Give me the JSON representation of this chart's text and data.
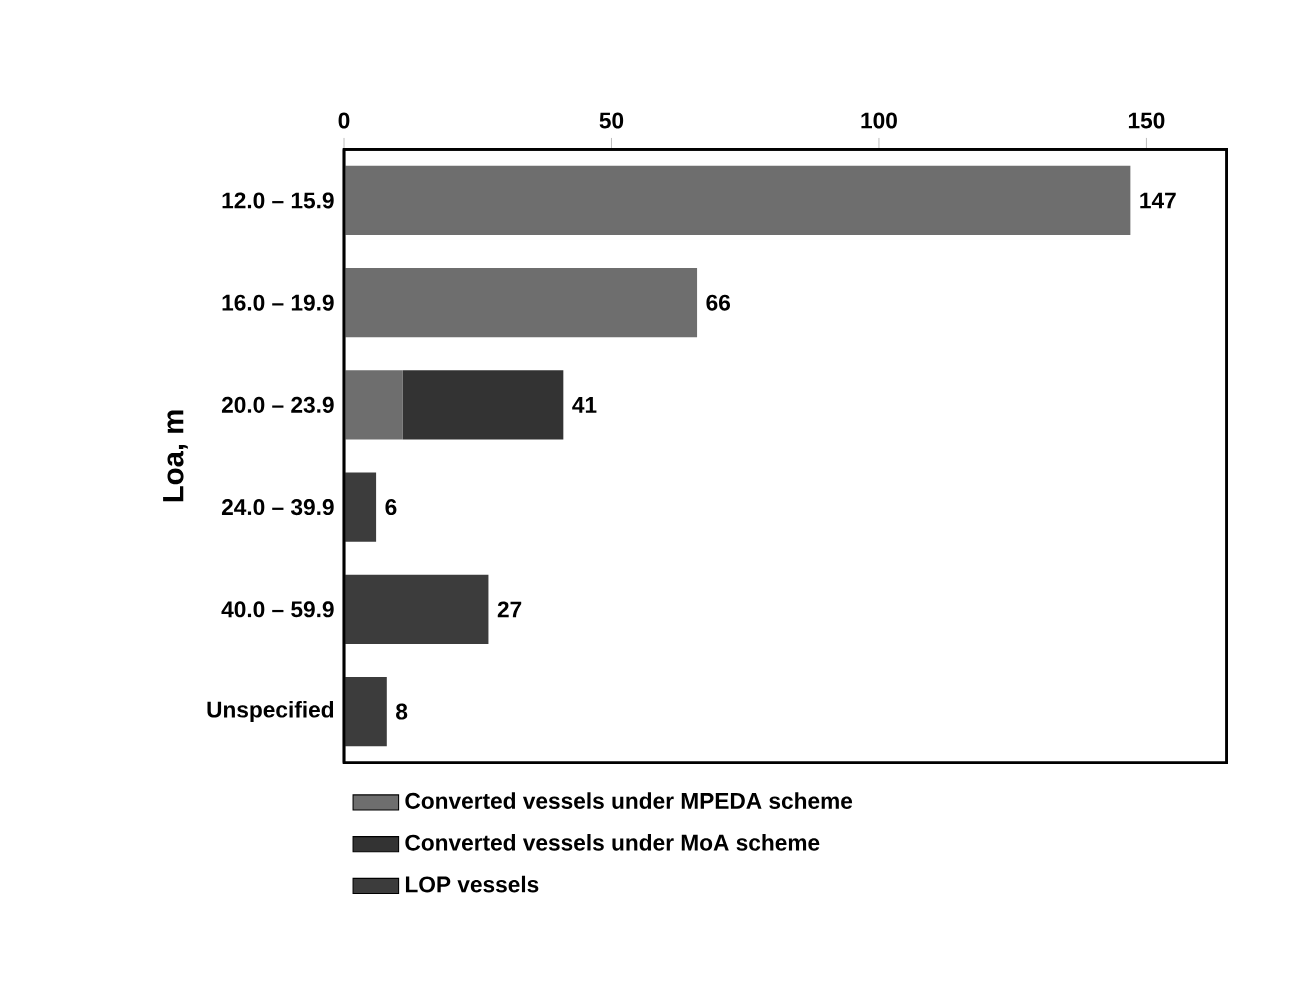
{
  "chart_data": {
    "type": "bar",
    "orientation": "horizontal",
    "stacked": true,
    "ylabel": "Loa, m",
    "categories": [
      "12.0 – 15.9",
      "16.0 – 19.9",
      "20.0 – 23.9",
      "24.0 – 39.9",
      "40.0 – 59.9",
      "Unspecified"
    ],
    "series": [
      {
        "name": "Converted vessels under MPEDA scheme",
        "color": "#6e6e6e",
        "values": [
          147,
          66,
          11,
          null,
          null,
          null
        ]
      },
      {
        "name": "Converted vessels under MoA scheme",
        "color": "#333333",
        "values": [
          null,
          null,
          30,
          null,
          null,
          null
        ]
      },
      {
        "name": "LOP vessels",
        "color": "#3c3c3c",
        "values": [
          null,
          null,
          null,
          6,
          27,
          8
        ]
      }
    ],
    "totals": [
      "147",
      "66",
      "41",
      "6",
      "27",
      "8"
    ],
    "xlim": [
      0,
      165
    ],
    "xticks": [
      0,
      50,
      100,
      150
    ],
    "legend": "bottom",
    "grid": false
  }
}
